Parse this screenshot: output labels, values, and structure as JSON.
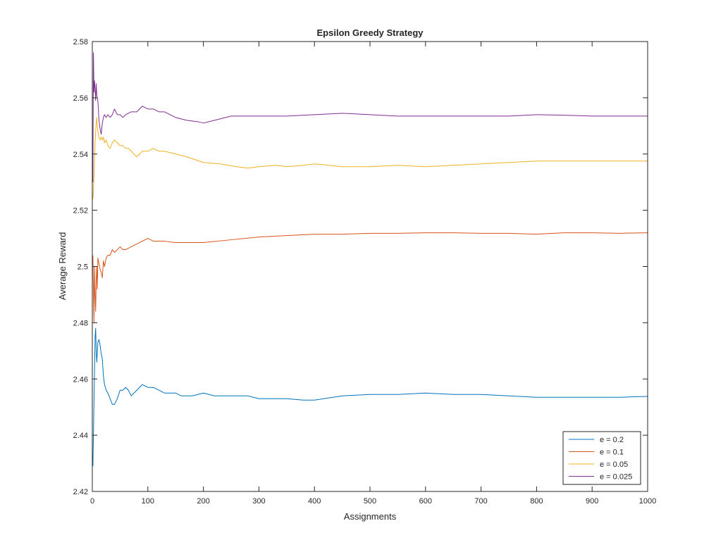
{
  "chart_data": {
    "type": "line",
    "title": "Epsilon Greedy Strategy",
    "xlabel": "Assignments",
    "ylabel": "Average Reward",
    "xlim": [
      0,
      1000
    ],
    "ylim": [
      2.42,
      2.58
    ],
    "xticks": [
      "0",
      "100",
      "200",
      "300",
      "400",
      "500",
      "600",
      "700",
      "800",
      "900",
      "1000"
    ],
    "yticks": [
      "2.42",
      "2.44",
      "2.46",
      "2.48",
      "2.5",
      "2.52",
      "2.54",
      "2.56",
      "2.58"
    ],
    "grid": false,
    "legend_position": "bottom-right",
    "series": [
      {
        "name": "e = 0.2",
        "color": "#0072BD",
        "x": [
          1,
          2,
          3,
          4,
          5,
          6,
          7,
          8,
          10,
          12,
          14,
          16,
          18,
          20,
          22,
          25,
          28,
          32,
          36,
          40,
          45,
          50,
          55,
          60,
          65,
          70,
          75,
          80,
          90,
          100,
          110,
          120,
          130,
          140,
          150,
          160,
          180,
          200,
          220,
          250,
          280,
          300,
          330,
          350,
          380,
          400,
          450,
          500,
          550,
          600,
          650,
          700,
          750,
          800,
          850,
          900,
          950,
          1000
        ],
        "y": [
          2.429,
          2.44,
          2.452,
          2.463,
          2.475,
          2.478,
          2.47,
          2.466,
          2.473,
          2.474,
          2.472,
          2.469,
          2.467,
          2.461,
          2.458,
          2.456,
          2.455,
          2.453,
          2.451,
          2.451,
          2.453,
          2.456,
          2.456,
          2.457,
          2.456,
          2.454,
          2.455,
          2.456,
          2.458,
          2.457,
          2.457,
          2.456,
          2.455,
          2.455,
          2.455,
          2.454,
          2.454,
          2.455,
          2.454,
          2.454,
          2.454,
          2.453,
          2.453,
          2.453,
          2.4525,
          2.4525,
          2.454,
          2.4545,
          2.4545,
          2.455,
          2.4545,
          2.4545,
          2.454,
          2.4535,
          2.4535,
          2.4535,
          2.4535,
          2.4538
        ]
      },
      {
        "name": "e = 0.1",
        "color": "#D95319",
        "x": [
          1,
          2,
          3,
          4,
          5,
          6,
          7,
          8,
          9,
          10,
          12,
          14,
          16,
          18,
          20,
          22,
          25,
          28,
          32,
          36,
          40,
          45,
          50,
          55,
          60,
          70,
          80,
          90,
          100,
          110,
          120,
          130,
          150,
          170,
          200,
          250,
          300,
          350,
          400,
          450,
          500,
          550,
          600,
          650,
          700,
          750,
          800,
          850,
          900,
          950,
          1000
        ],
        "y": [
          2.504,
          2.492,
          2.48,
          2.5,
          2.49,
          2.484,
          2.495,
          2.5,
          2.492,
          2.503,
          2.501,
          2.499,
          2.498,
          2.496,
          2.502,
          2.5,
          2.503,
          2.504,
          2.504,
          2.506,
          2.505,
          2.506,
          2.507,
          2.506,
          2.506,
          2.507,
          2.508,
          2.509,
          2.51,
          2.509,
          2.509,
          2.509,
          2.5085,
          2.5085,
          2.5085,
          2.5095,
          2.5105,
          2.511,
          2.5115,
          2.5115,
          2.5118,
          2.5118,
          2.512,
          2.512,
          2.5118,
          2.5118,
          2.5115,
          2.512,
          2.512,
          2.5118,
          2.512
        ]
      },
      {
        "name": "e = 0.05",
        "color": "#EDB120",
        "x": [
          1,
          2,
          3,
          4,
          5,
          6,
          7,
          8,
          9,
          10,
          12,
          14,
          16,
          18,
          20,
          22,
          25,
          28,
          32,
          36,
          40,
          45,
          50,
          55,
          60,
          65,
          70,
          75,
          80,
          90,
          100,
          110,
          120,
          130,
          150,
          170,
          200,
          230,
          260,
          280,
          300,
          330,
          350,
          380,
          400,
          450,
          500,
          550,
          600,
          650,
          700,
          750,
          800,
          850,
          900,
          950,
          1000
        ],
        "y": [
          2.524,
          2.527,
          2.532,
          2.538,
          2.544,
          2.548,
          2.551,
          2.553,
          2.55,
          2.548,
          2.546,
          2.545,
          2.546,
          2.545,
          2.546,
          2.544,
          2.545,
          2.543,
          2.542,
          2.544,
          2.545,
          2.544,
          2.543,
          2.543,
          2.542,
          2.542,
          2.541,
          2.54,
          2.539,
          2.541,
          2.541,
          2.542,
          2.541,
          2.541,
          2.54,
          2.539,
          2.537,
          2.5365,
          2.5355,
          2.535,
          2.5355,
          2.536,
          2.5355,
          2.536,
          2.5365,
          2.5355,
          2.5355,
          2.536,
          2.5355,
          2.536,
          2.5365,
          2.537,
          2.5375,
          2.5375,
          2.5375,
          2.5375,
          2.5375
        ]
      },
      {
        "name": "e = 0.025",
        "color": "#7E2F8E",
        "x": [
          1,
          2,
          3,
          4,
          5,
          6,
          7,
          8,
          10,
          12,
          14,
          16,
          18,
          20,
          22,
          25,
          28,
          32,
          36,
          40,
          45,
          50,
          55,
          60,
          70,
          80,
          90,
          100,
          110,
          120,
          130,
          140,
          150,
          170,
          190,
          200,
          220,
          250,
          300,
          350,
          400,
          450,
          500,
          550,
          600,
          650,
          700,
          750,
          800,
          850,
          900,
          950,
          1000
        ],
        "y": [
          2.53,
          2.576,
          2.562,
          2.566,
          2.563,
          2.559,
          2.565,
          2.561,
          2.559,
          2.552,
          2.549,
          2.547,
          2.551,
          2.553,
          2.554,
          2.553,
          2.554,
          2.553,
          2.554,
          2.556,
          2.554,
          2.554,
          2.553,
          2.554,
          2.555,
          2.555,
          2.557,
          2.556,
          2.556,
          2.555,
          2.555,
          2.554,
          2.553,
          2.552,
          2.5515,
          2.551,
          2.552,
          2.5535,
          2.5535,
          2.5535,
          2.554,
          2.5545,
          2.554,
          2.5535,
          2.5535,
          2.5535,
          2.5535,
          2.5535,
          2.554,
          2.5538,
          2.5535,
          2.5535,
          2.5535
        ]
      }
    ]
  }
}
